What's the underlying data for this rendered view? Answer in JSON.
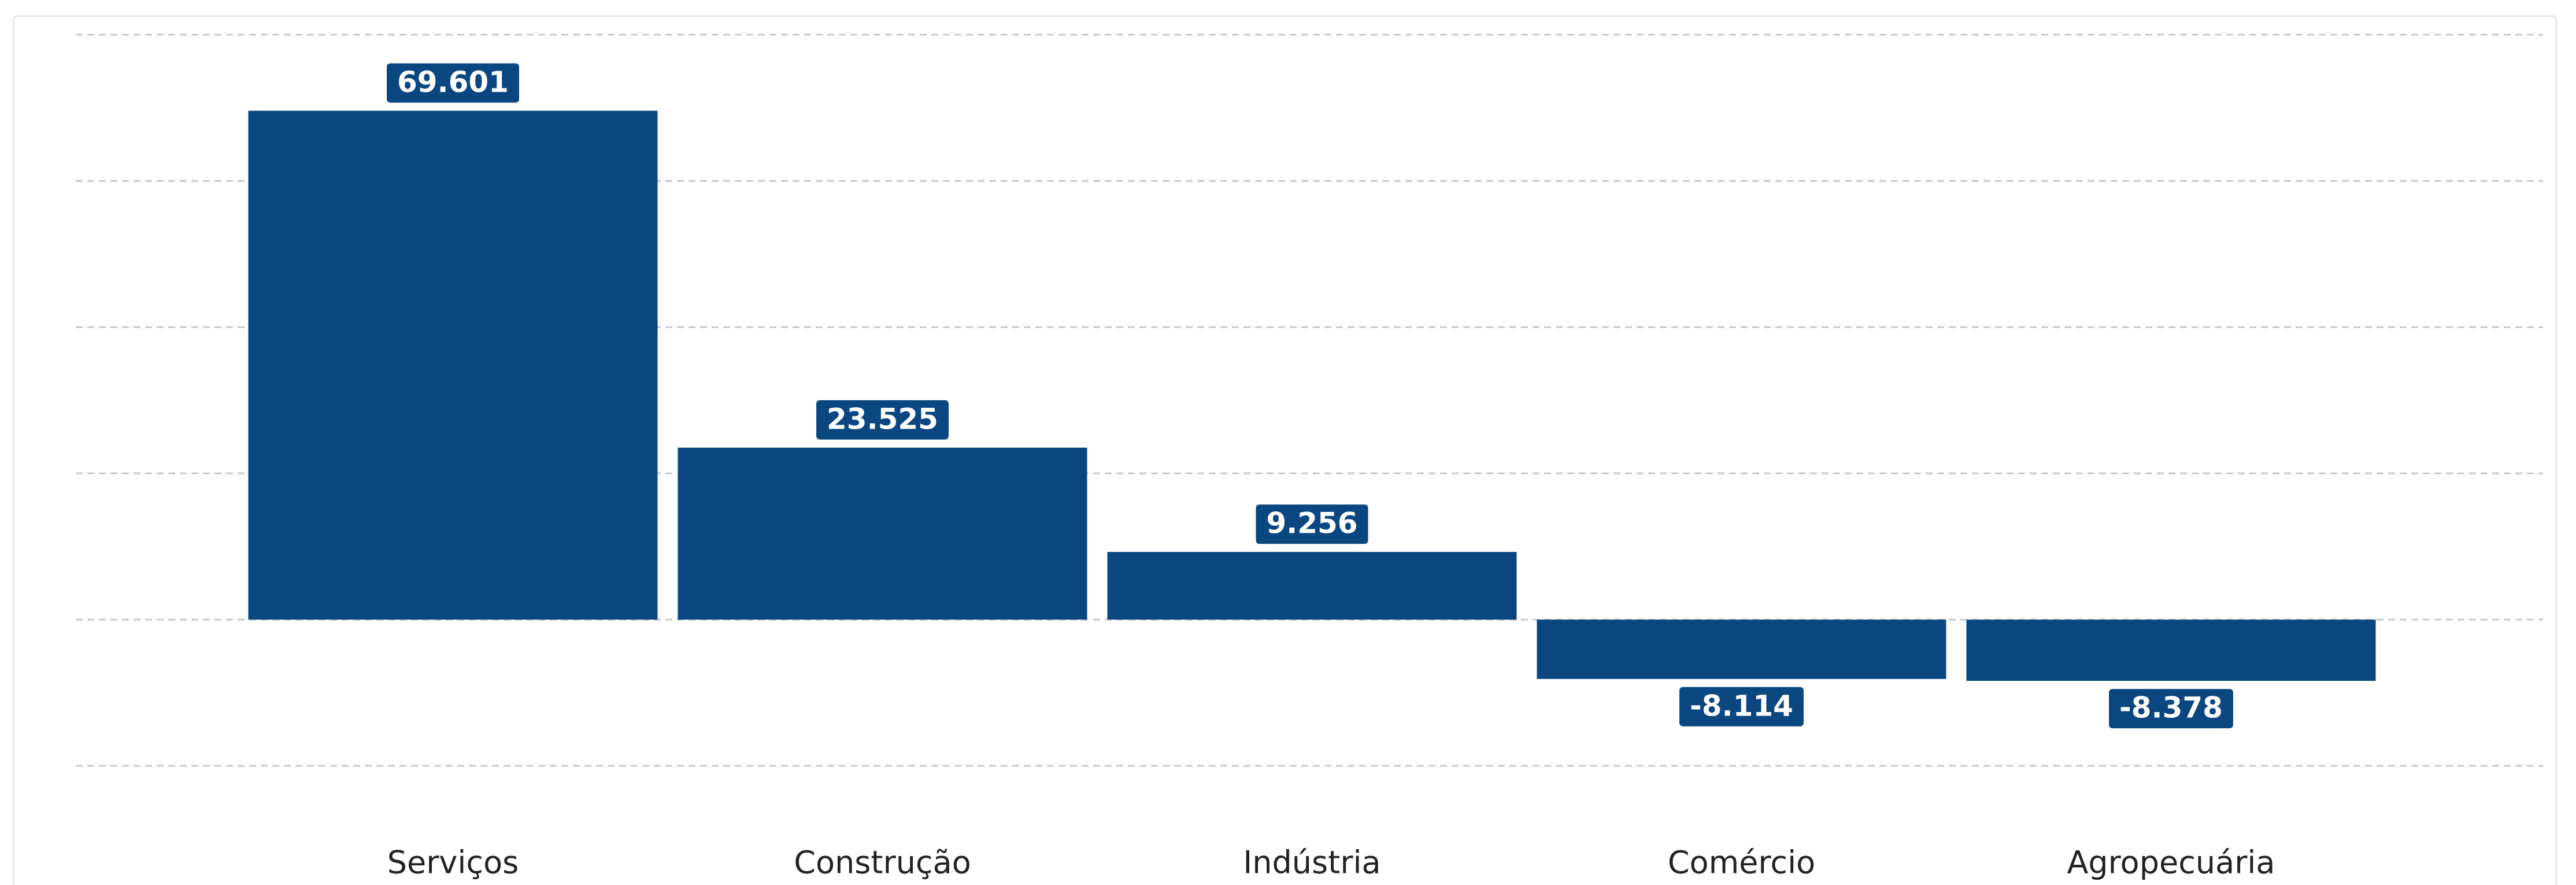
{
  "chart_data": {
    "type": "bar",
    "categories": [
      "Serviços",
      "Construção",
      "Indústria",
      "Comércio",
      "Agropecuária"
    ],
    "values": [
      69601,
      23525,
      9256,
      -8114,
      -8378
    ],
    "value_labels": [
      "69.601",
      "23.525",
      "9.256",
      "-8.114",
      "-8.378"
    ],
    "color": "#0a4780",
    "ylim": [
      -20000,
      80000
    ],
    "yticks": [
      -20000,
      0,
      20000,
      40000,
      60000,
      80000
    ],
    "grid": true
  }
}
